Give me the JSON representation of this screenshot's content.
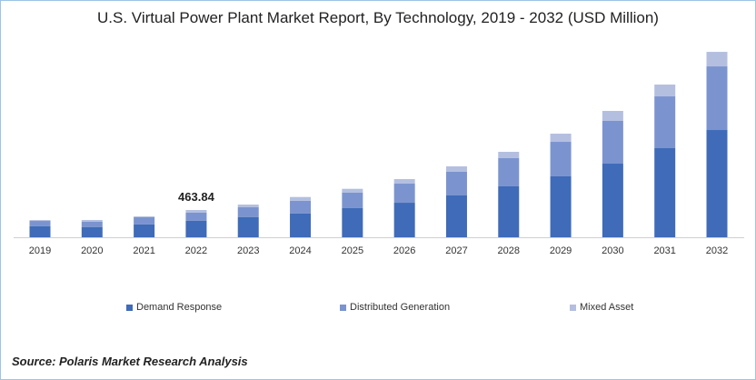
{
  "chart_data": {
    "type": "bar",
    "stacked": true,
    "title": "U.S. Virtual Power Plant Market Report, By Technology, 2019 - 2032 (USD Million)",
    "xlabel": "",
    "ylabel": "",
    "categories": [
      "2019",
      "2020",
      "2021",
      "2022",
      "2023",
      "2024",
      "2025",
      "2026",
      "2027",
      "2028",
      "2029",
      "2030",
      "2031",
      "2032"
    ],
    "series": [
      {
        "name": "Demand Response",
        "color": "#3f6bb8",
        "values": [
          190,
          175,
          221,
          283,
          345,
          407,
          495,
          587,
          711,
          866,
          1036,
          1252,
          1515,
          1824
        ]
      },
      {
        "name": "Distributed Generation",
        "color": "#7b94cf",
        "values": [
          88,
          88,
          119,
          134.5,
          165,
          212,
          267,
          325,
          402,
          479,
          587,
          727,
          881,
          1082
        ]
      },
      {
        "name": "Mixed Asset",
        "color": "#b4bfe0",
        "values": [
          15,
          31,
          15,
          46.34,
          46,
          66,
          62,
          77,
          93,
          108,
          139,
          170,
          201,
          247
        ]
      }
    ],
    "annotations": [
      {
        "category": "2022",
        "text": "463.84"
      }
    ],
    "ylim": [
      0,
      3300
    ],
    "grid": false,
    "legend_position": "bottom"
  },
  "source": "Source: Polaris  Market Research Analysis"
}
